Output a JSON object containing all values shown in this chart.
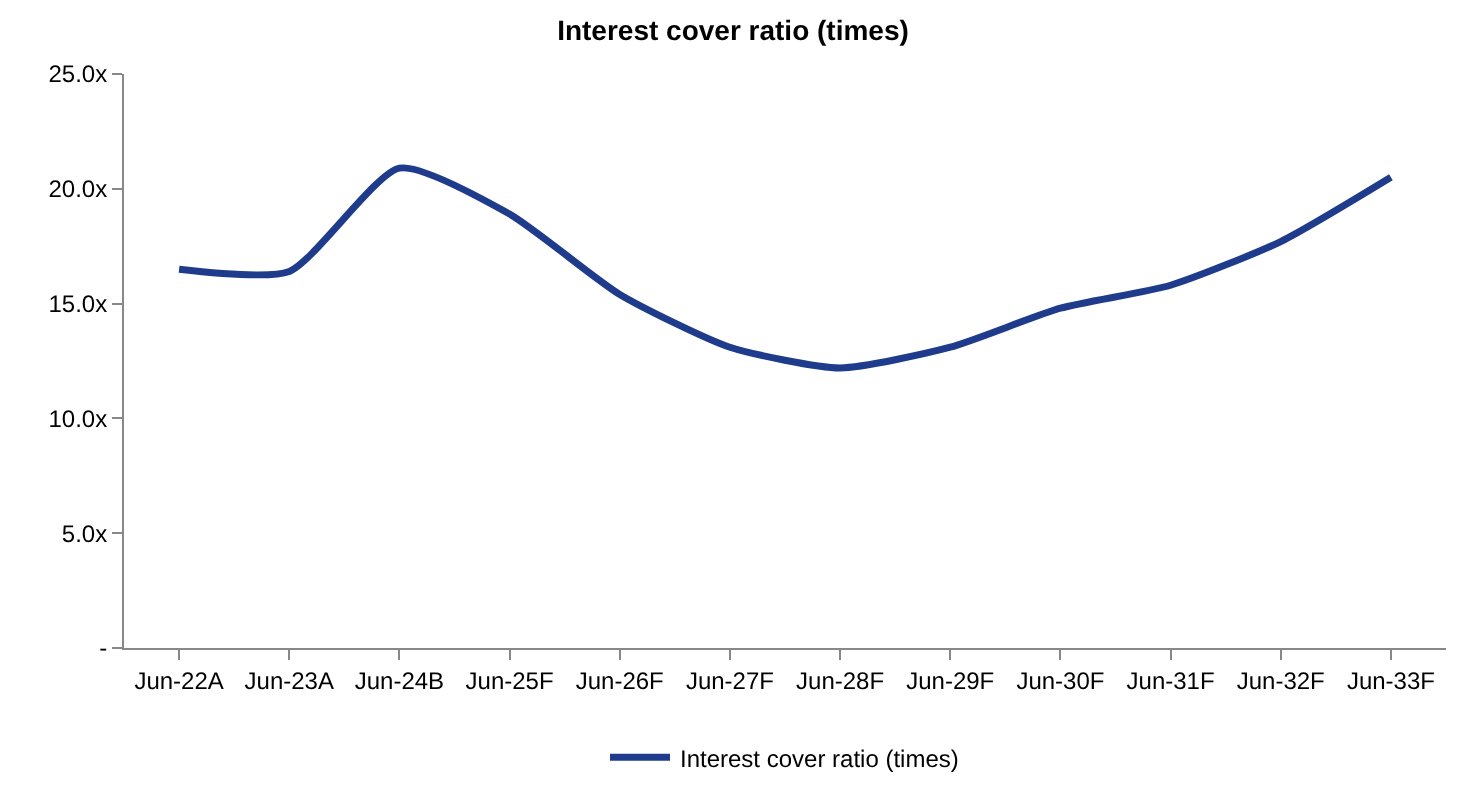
{
  "chart_data": {
    "type": "line",
    "title": "Interest cover ratio (times)",
    "categories": [
      "Jun-22A",
      "Jun-23A",
      "Jun-24B",
      "Jun-25F",
      "Jun-26F",
      "Jun-27F",
      "Jun-28F",
      "Jun-29F",
      "Jun-30F",
      "Jun-31F",
      "Jun-32F",
      "Jun-33F"
    ],
    "series": [
      {
        "name": "Interest cover ratio (times)",
        "color": "#1f3b8c",
        "values": [
          16.5,
          16.4,
          20.9,
          18.9,
          15.4,
          13.1,
          12.2,
          13.1,
          14.8,
          15.8,
          17.7,
          20.5
        ]
      }
    ],
    "ylim": [
      0,
      25
    ],
    "yticks": [
      {
        "value": 0,
        "label": "-"
      },
      {
        "value": 5,
        "label": "5.0x"
      },
      {
        "value": 10,
        "label": "10.0x"
      },
      {
        "value": 15,
        "label": "15.0x"
      },
      {
        "value": 20,
        "label": "20.0x"
      },
      {
        "value": 25,
        "label": "25.0x"
      }
    ],
    "grid": false,
    "legend": "bottom",
    "marker": "none",
    "line_style": "solid"
  }
}
